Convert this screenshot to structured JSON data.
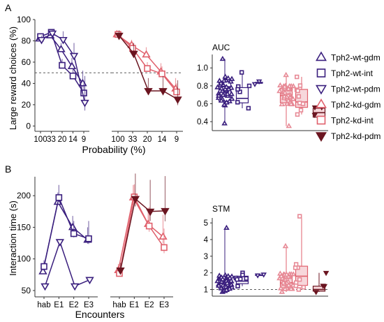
{
  "figure": {
    "panel_a": "A",
    "panel_b": "B",
    "top_ylabel": "Large reward choices (%)",
    "top_xlabel": "Probability (%)",
    "bottom_ylabel": "Interaction time (s)",
    "bottom_xlabel": "Encounters",
    "auc_title": "AUC",
    "stm_title": "STM"
  },
  "colors": {
    "wt": "#3a1f7e",
    "kd": "#e0606c",
    "kd_pdm": "#6b1520",
    "kd_box_fill": "#f7d7db",
    "kd_pts": "#e78a96",
    "wt_box_fill": "#ffffff"
  },
  "legend": [
    {
      "label": "Tph2-wt-gdm",
      "marker": "triangle-up",
      "color": "#3a1f7e",
      "fill": "none"
    },
    {
      "label": "Tph2-wt-int",
      "marker": "square",
      "color": "#3a1f7e",
      "fill": "none"
    },
    {
      "label": "Tph2-wt-pdm",
      "marker": "triangle-down",
      "color": "#3a1f7e",
      "fill": "none"
    },
    {
      "label": "Tph2-kd-gdm",
      "marker": "triangle-up",
      "color": "#e0606c",
      "fill": "none"
    },
    {
      "label": "Tph2-kd-int",
      "marker": "square",
      "color": "#e0606c",
      "fill": "none"
    },
    {
      "label": "Tph2-kd-pdm",
      "marker": "triangle-down",
      "color": "#6b1520",
      "fill": "#6b1520"
    }
  ],
  "chart_data": [
    {
      "type": "line",
      "id": "top-left",
      "x": [
        "100",
        "33",
        "20",
        "14",
        "9"
      ],
      "ylim": [
        -5,
        100
      ],
      "yticks": [
        0,
        20,
        40,
        60,
        80,
        100
      ],
      "reference_line": 50,
      "series": [
        {
          "name": "Tph2-wt-gdm",
          "values": [
            82,
            85,
            72,
            56,
            40
          ],
          "err": [
            3,
            4,
            6,
            8,
            12
          ]
        },
        {
          "name": "Tph2-wt-int",
          "values": [
            84,
            88,
            57,
            47,
            31
          ],
          "err": [
            3,
            3,
            6,
            7,
            9
          ]
        },
        {
          "name": "Tph2-wt-pdm",
          "values": [
            81,
            87,
            81,
            66,
            22
          ],
          "err": [
            4,
            4,
            8,
            12,
            25
          ]
        }
      ]
    },
    {
      "type": "line",
      "id": "top-right",
      "x": [
        "100",
        "33",
        "20",
        "14",
        "9"
      ],
      "ylim": [
        -5,
        100
      ],
      "reference_line": 50,
      "series": [
        {
          "name": "Tph2-kd-gdm",
          "values": [
            86,
            76,
            67,
            51,
            35
          ],
          "err": [
            3,
            5,
            7,
            8,
            10
          ]
        },
        {
          "name": "Tph2-kd-int",
          "values": [
            86,
            73,
            54,
            49,
            32
          ],
          "err": [
            3,
            4,
            6,
            7,
            8
          ]
        },
        {
          "name": "Tph2-kd-pdm",
          "values": [
            85,
            68,
            33,
            33,
            25
          ],
          "err": [
            5,
            10,
            12,
            14,
            18
          ]
        }
      ]
    },
    {
      "type": "box",
      "id": "auc",
      "title": "AUC",
      "ylim": [
        0.3,
        1.15
      ],
      "yticks": [
        0.4,
        0.6,
        0.8,
        1.0
      ],
      "ytick_labels": [
        "0.4",
        "0.6",
        "0.8",
        "1.0"
      ],
      "groups": [
        {
          "name": "Tph2-wt-gdm",
          "q1": 0.63,
          "median": 0.79,
          "q3": 0.85,
          "lo": 0.38,
          "hi": 1.1,
          "n": 36
        },
        {
          "name": "Tph2-wt-int",
          "q1": 0.61,
          "median": 0.66,
          "q3": 0.78,
          "lo": 0.55,
          "hi": 0.95,
          "n": 7
        },
        {
          "name": "Tph2-wt-pdm",
          "q1": 0.83,
          "median": 0.83,
          "q3": 0.84,
          "lo": 0.82,
          "hi": 0.85,
          "n": 2
        },
        {
          "name": "Tph2-kd-gdm",
          "q1": 0.61,
          "median": 0.69,
          "q3": 0.77,
          "lo": 0.35,
          "hi": 0.92,
          "n": 36
        },
        {
          "name": "Tph2-kd-int",
          "q1": 0.56,
          "median": 0.62,
          "q3": 0.76,
          "lo": 0.48,
          "hi": 0.9,
          "n": 9
        },
        {
          "name": "Tph2-kd-pdm",
          "q1": 0.45,
          "median": 0.5,
          "q3": 0.55,
          "lo": 0.44,
          "hi": 0.56,
          "n": 4
        }
      ]
    },
    {
      "type": "line",
      "id": "bottom-left",
      "x": [
        "hab",
        "E1",
        "E2",
        "E3"
      ],
      "ylim": [
        40,
        230
      ],
      "yticks": [
        50,
        100,
        150,
        200
      ],
      "series": [
        {
          "name": "Tph2-wt-gdm",
          "values": [
            80,
            190,
            150,
            130
          ],
          "err": [
            8,
            15,
            18,
            20
          ]
        },
        {
          "name": "Tph2-wt-int",
          "values": [
            88,
            197,
            140,
            132
          ],
          "err": [
            10,
            20,
            20,
            28
          ]
        },
        {
          "name": "Tph2-wt-pdm",
          "values": [
            57,
            127,
            57,
            67
          ],
          "err": [
            0,
            0,
            0,
            0
          ]
        }
      ]
    },
    {
      "type": "line",
      "id": "bottom-right",
      "x": [
        "hab",
        "E1",
        "E2",
        "E3"
      ],
      "ylim": [
        40,
        230
      ],
      "series": [
        {
          "name": "Tph2-kd-gdm",
          "values": [
            82,
            197,
            155,
            135
          ],
          "err": [
            10,
            20,
            25,
            35
          ]
        },
        {
          "name": "Tph2-kd-int",
          "values": [
            77,
            198,
            152,
            118
          ],
          "err": [
            8,
            20,
            30,
            30
          ]
        },
        {
          "name": "Tph2-kd-pdm",
          "values": [
            82,
            195,
            175,
            176
          ],
          "err": [
            12,
            40,
            50,
            55
          ]
        }
      ]
    },
    {
      "type": "box",
      "id": "stm",
      "title": "STM",
      "ylim": [
        0.6,
        5.3
      ],
      "yticks": [
        1,
        2,
        3,
        4,
        5
      ],
      "ytick_labels": [
        "1",
        "2",
        "3",
        "4",
        "5"
      ],
      "reference_line": 1,
      "groups": [
        {
          "name": "Tph2-wt-gdm",
          "q1": 1.05,
          "median": 1.35,
          "q3": 1.7,
          "lo": 0.85,
          "hi": 4.7,
          "n": 40
        },
        {
          "name": "Tph2-wt-int",
          "q1": 1.35,
          "median": 1.5,
          "q3": 1.8,
          "lo": 1.2,
          "hi": 2.0,
          "n": 7
        },
        {
          "name": "Tph2-wt-pdm",
          "q1": 1.85,
          "median": 1.85,
          "q3": 1.88,
          "lo": 1.85,
          "hi": 1.9,
          "n": 2
        },
        {
          "name": "Tph2-kd-gdm",
          "q1": 1.1,
          "median": 1.4,
          "q3": 1.8,
          "lo": 0.85,
          "hi": 3.6,
          "n": 38
        },
        {
          "name": "Tph2-kd-int",
          "q1": 1.25,
          "median": 1.8,
          "q3": 2.4,
          "lo": 1.0,
          "hi": 5.4,
          "n": 9
        },
        {
          "name": "Tph2-kd-pdm",
          "q1": 0.9,
          "median": 1.0,
          "q3": 1.2,
          "lo": 0.85,
          "hi": 2.0,
          "n": 4
        }
      ]
    }
  ]
}
